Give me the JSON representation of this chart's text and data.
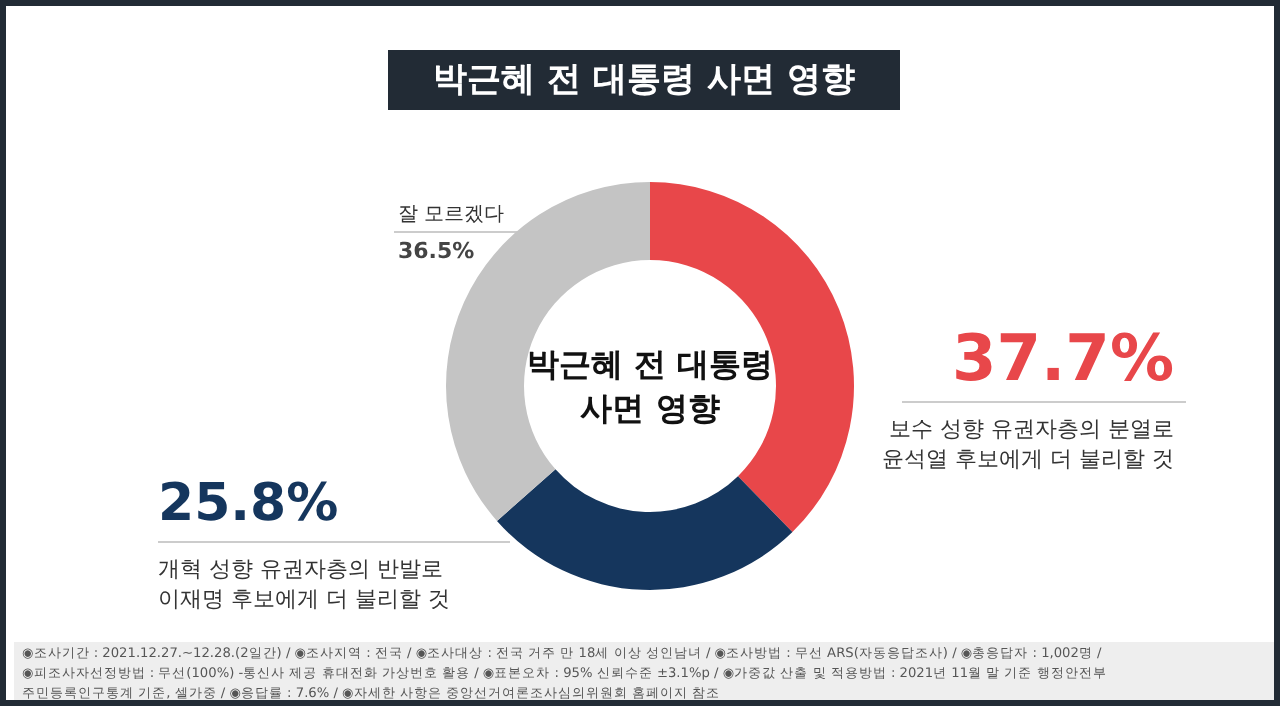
{
  "chart_data": {
    "type": "donut",
    "title": "박근혜 전 대통령 사면 영향",
    "categories": [
      "보수 성향 유권자층의 분열로\n윤석열 후보에게 더 불리할 것",
      "개혁 성향 유권자층의 반발로\n이재명 후보에게 더 불리할 것",
      "잘 모르겠다"
    ],
    "values": [
      37.7,
      25.8,
      36.5
    ],
    "value_labels": [
      "37.7%",
      "25.8%",
      "36.5%"
    ],
    "colors": [
      "#e8474a",
      "#15365d",
      "#c4c4c4"
    ],
    "legend": false,
    "annotations": [
      "박근혜 전 대통령\n사면 영향",
      "◉조사기간 : 2021.12.27.~12.28.(2일간) / ◉조사지역 : 전국 / ◉조사대상 : 전국 거주 만 18세 이상 성인남녀 / ◉조사방법 : 무선 ARS(자동응답조사) / ◉총응답자 : 1,002명 /",
      "◉피조사자선정방법 : 무선(100%) -통신사 제공 휴대전화 가상번호 활용 / ◉표본오차 : 95% 신뢰수준 ±3.1%p / ◉가중값 산출 및 적용방법 : 2021년 11월 말 기준 행정안전부",
      "주민등록인구통계 기준, 셀가중 / ◉응답률 : 7.6% / ◉자세한 사항은 중앙선거여론조사심의위원회 홈페이지 참조"
    ]
  }
}
